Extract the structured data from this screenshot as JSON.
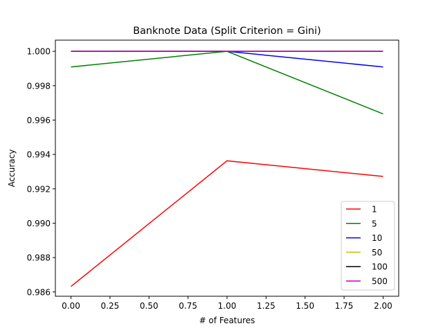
{
  "chart_data": {
    "type": "line",
    "title": "Banknote Data (Split Criterion = Gini)",
    "xlabel": "# of Features",
    "ylabel": "Accuracy",
    "x": [
      0,
      1,
      2
    ],
    "xlim": [
      -0.1,
      2.1
    ],
    "ylim": [
      0.98575,
      1.00065
    ],
    "xticks": [
      0.0,
      0.25,
      0.5,
      0.75,
      1.0,
      1.25,
      1.5,
      1.75,
      2.0
    ],
    "xtick_labels": [
      "0.00",
      "0.25",
      "0.50",
      "0.75",
      "1.00",
      "1.25",
      "1.50",
      "1.75",
      "2.00"
    ],
    "yticks": [
      0.986,
      0.988,
      0.99,
      0.992,
      0.994,
      0.996,
      0.998,
      1.0
    ],
    "ytick_labels": [
      "0.986",
      "0.988",
      "0.990",
      "0.992",
      "0.994",
      "0.996",
      "0.998",
      "1.000"
    ],
    "grid": false,
    "legend_position": "lower-right",
    "series": [
      {
        "name": "1",
        "color": "#ff0000",
        "values": [
          0.98632,
          0.99363,
          0.99272
        ]
      },
      {
        "name": "5",
        "color": "#008000",
        "values": [
          0.99909,
          1.0,
          0.99636
        ]
      },
      {
        "name": "10",
        "color": "#0000ff",
        "values": [
          1.0,
          1.0,
          0.99909
        ]
      },
      {
        "name": "50",
        "color": "#bfbf00",
        "values": [
          1.0,
          1.0,
          1.0
        ]
      },
      {
        "name": "100",
        "color": "#000000",
        "values": [
          1.0,
          1.0,
          1.0
        ]
      },
      {
        "name": "500",
        "color": "#bf00bf",
        "values": [
          1.0,
          1.0,
          1.0
        ]
      }
    ]
  }
}
